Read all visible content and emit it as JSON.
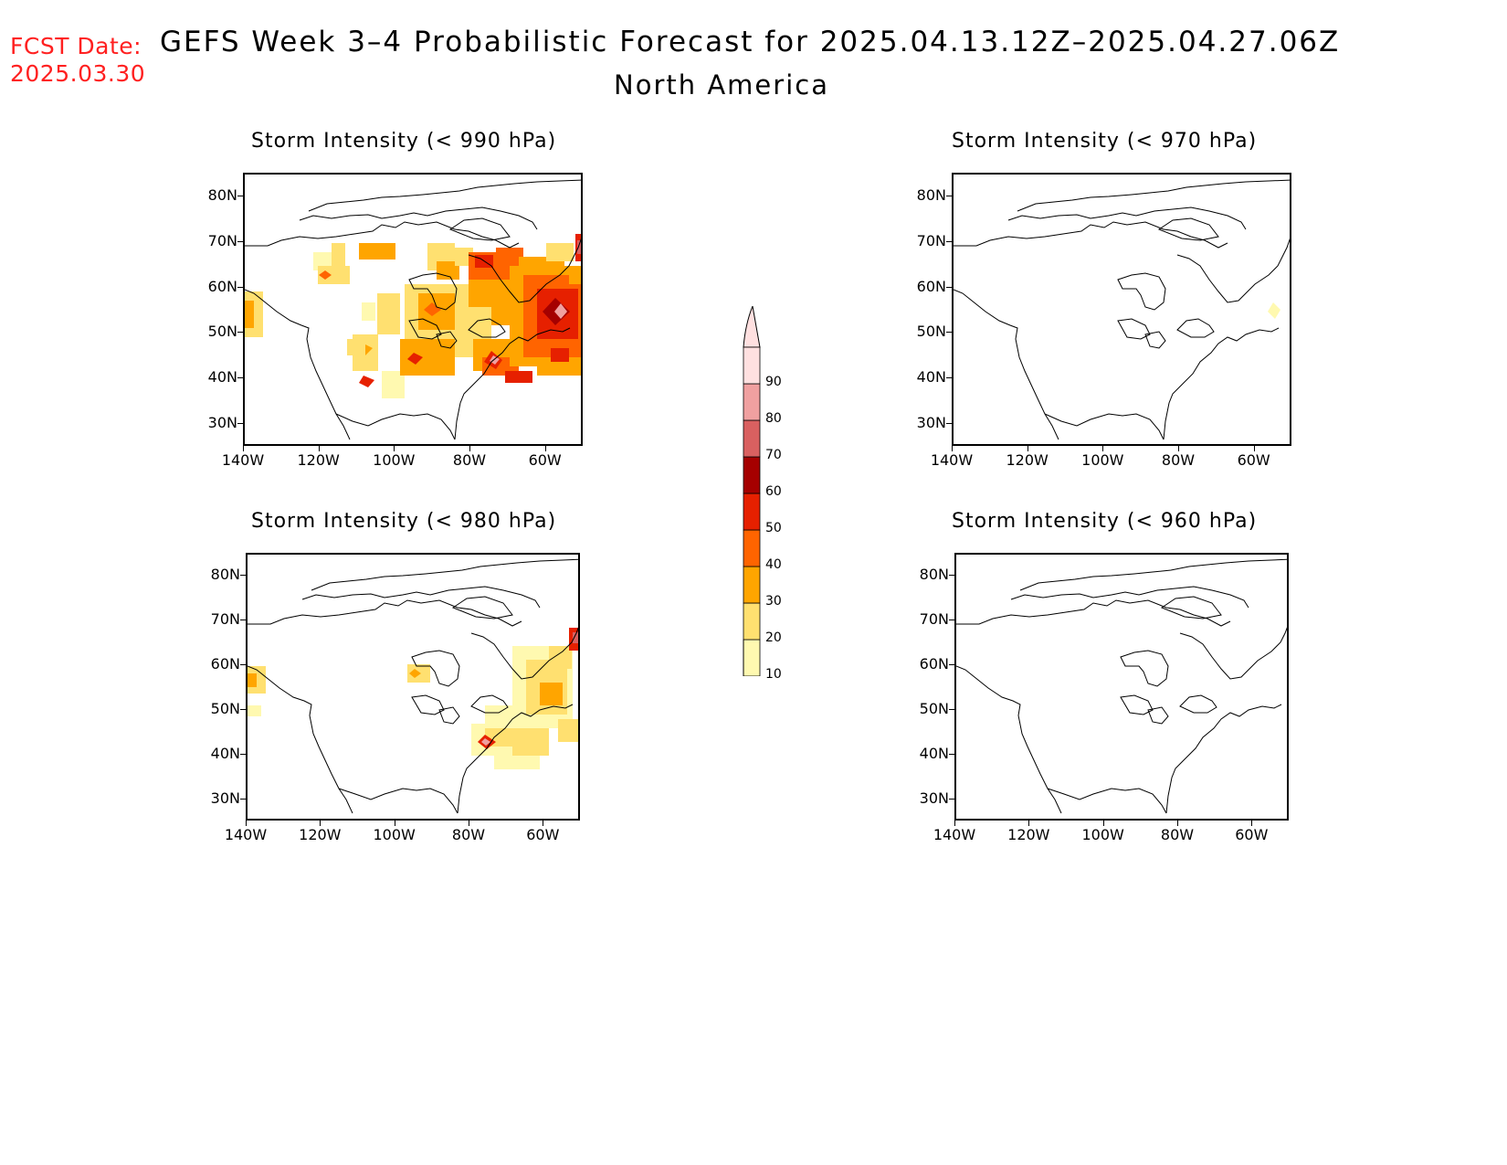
{
  "header": {
    "fcst_label": "FCST Date:",
    "fcst_date": "2025.03.30",
    "title": "GEFS Week 3–4 Probabilistic Forecast for 2025.04.13.12Z–2025.04.27.06Z",
    "region": "North America"
  },
  "panels": [
    {
      "title": "Storm Intensity (< 990 hPa)",
      "threshold": "990"
    },
    {
      "title": "Storm Intensity (< 970 hPa)",
      "threshold": "970"
    },
    {
      "title": "Storm Intensity (< 980 hPa)",
      "threshold": "980"
    },
    {
      "title": "Storm Intensity (< 960 hPa)",
      "threshold": "960"
    }
  ],
  "axes": {
    "lat_ticks": [
      "80N",
      "70N",
      "60N",
      "50N",
      "40N",
      "30N"
    ],
    "lon_ticks": [
      "140W",
      "120W",
      "100W",
      "80W",
      "60W"
    ]
  },
  "colorbar": {
    "levels": [
      "10",
      "20",
      "30",
      "40",
      "50",
      "60",
      "70",
      "80",
      "90"
    ],
    "colors": [
      "#fff9b0",
      "#ffe070",
      "#ffa500",
      "#ff6400",
      "#e62000",
      "#a50000",
      "#d96060",
      "#f0a0a0",
      "#ffe0e0"
    ]
  },
  "map_data": {
    "lon_range": [
      -140,
      -50
    ],
    "lat_range": [
      25,
      85
    ],
    "probability_units": "%"
  }
}
